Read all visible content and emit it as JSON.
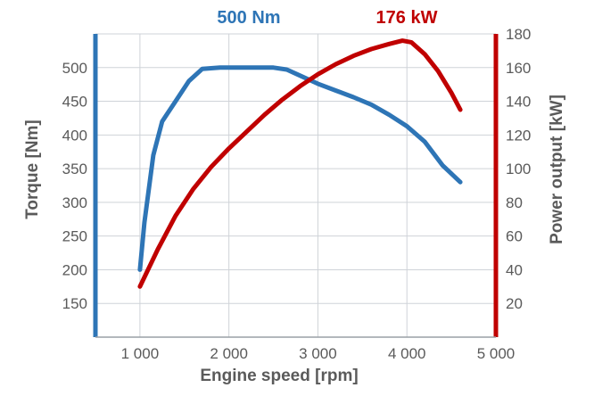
{
  "chart_data": {
    "type": "line",
    "x": [
      1000,
      1200,
      1400,
      1600,
      1800,
      2000,
      2200,
      2400,
      2600,
      2800,
      3000,
      3200,
      3400,
      3600,
      3800,
      4000,
      4100,
      4200,
      4300,
      4400,
      4500,
      4600
    ],
    "xlabel": "Engine speed [rpm]",
    "xlim": [
      500,
      5000
    ],
    "xticks": [
      1000,
      2000,
      3000,
      4000,
      5000
    ],
    "xtick_labels": [
      "1 000",
      "2 000",
      "3 000",
      "4 000",
      "5 000"
    ],
    "grid": true,
    "left_axis": {
      "label": "Torque [Nm]",
      "ylim": [
        100,
        550
      ],
      "ticks": [
        150,
        200,
        250,
        300,
        350,
        400,
        450,
        500
      ],
      "color": "#2e75b6"
    },
    "right_axis": {
      "label": "Power output [kW]",
      "ylim": [
        0,
        180
      ],
      "ticks": [
        20,
        40,
        60,
        80,
        100,
        120,
        140,
        160,
        180
      ],
      "color": "#c00000"
    },
    "series": [
      {
        "axis": "left",
        "color": "#2e75b6",
        "peak_label": "500 Nm",
        "points": [
          [
            1000,
            200
          ],
          [
            1050,
            270
          ],
          [
            1150,
            370
          ],
          [
            1250,
            420
          ],
          [
            1400,
            450
          ],
          [
            1550,
            480
          ],
          [
            1700,
            498
          ],
          [
            1900,
            500
          ],
          [
            2200,
            500
          ],
          [
            2500,
            500
          ],
          [
            2650,
            497
          ],
          [
            2800,
            488
          ],
          [
            3000,
            476
          ],
          [
            3200,
            466
          ],
          [
            3400,
            456
          ],
          [
            3600,
            445
          ],
          [
            3800,
            430
          ],
          [
            4000,
            413
          ],
          [
            4200,
            390
          ],
          [
            4400,
            355
          ],
          [
            4600,
            330
          ]
        ]
      },
      {
        "axis": "right",
        "color": "#c00000",
        "peak_label": "176 kW",
        "points": [
          [
            1000,
            30
          ],
          [
            1200,
            52
          ],
          [
            1400,
            72
          ],
          [
            1600,
            88
          ],
          [
            1800,
            101
          ],
          [
            2000,
            112
          ],
          [
            2200,
            122
          ],
          [
            2400,
            132
          ],
          [
            2600,
            141
          ],
          [
            2800,
            149
          ],
          [
            3000,
            156
          ],
          [
            3200,
            162
          ],
          [
            3400,
            167
          ],
          [
            3600,
            171
          ],
          [
            3800,
            174
          ],
          [
            3950,
            176
          ],
          [
            4050,
            175
          ],
          [
            4200,
            168
          ],
          [
            4350,
            158
          ],
          [
            4500,
            145
          ],
          [
            4600,
            135
          ]
        ]
      }
    ]
  }
}
